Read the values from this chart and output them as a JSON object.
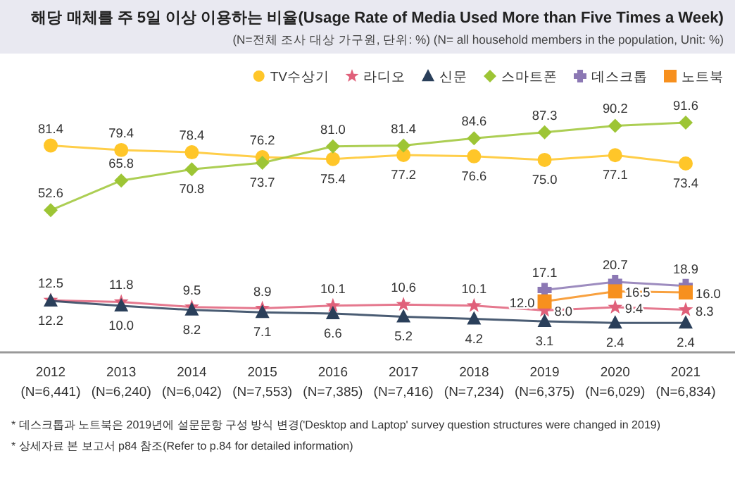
{
  "chart_data": {
    "type": "line",
    "title": "해당 매체를 주 5일 이상 이용하는 비율(Usage Rate of Media Used More than Five Times a Week)",
    "subtitle": "(N=전체 조사 대상 가구원, 단위: %) (N= all household members in the population, Unit: %)",
    "categories": [
      "2012\n(N=6,441)",
      "2013\n(N=6,240)",
      "2014\n(N=6,042)",
      "2015\n(N=7,553)",
      "2016\n(N=7,385)",
      "2017\n(N=7,416)",
      "2018\n(N=7,234)",
      "2019\n(N=6,375)",
      "2020\n(N=6,029)",
      "2021\n(N=6,834)"
    ],
    "series": [
      {
        "name": "TV수상기",
        "color": "#ffc629",
        "marker": "circle",
        "values": [
          81.4,
          79.4,
          78.4,
          76.2,
          75.4,
          77.2,
          76.6,
          75.0,
          77.1,
          73.4
        ],
        "value_labels": [
          "81.4",
          "79.4",
          "78.4",
          "76.2",
          "75.4",
          "77.2",
          "76.6",
          "75.0",
          "77.1",
          "73.4"
        ]
      },
      {
        "name": "라디오",
        "color": "#e0607a",
        "marker": "star",
        "values": [
          12.5,
          11.8,
          9.5,
          8.9,
          10.1,
          10.6,
          10.1,
          8.0,
          9.4,
          8.3
        ],
        "value_labels": [
          "12.5",
          "11.8",
          "9.5",
          "8.9",
          "10.1",
          "10.6",
          "10.1",
          "8.0",
          "9.4",
          "8.3"
        ]
      },
      {
        "name": "신문",
        "color": "#2a3f5a",
        "marker": "triangle",
        "values": [
          12.2,
          10.0,
          8.2,
          7.1,
          6.6,
          5.2,
          4.2,
          3.1,
          2.4,
          2.4
        ],
        "value_labels": [
          "12.2",
          "10.0",
          "8.2",
          "7.1",
          "6.6",
          "5.2",
          "4.2",
          "3.1",
          "2.4",
          "2.4"
        ]
      },
      {
        "name": "스마트폰",
        "color": "#9dc535",
        "marker": "diamond",
        "values": [
          52.6,
          65.8,
          70.8,
          73.7,
          81.0,
          81.4,
          84.6,
          87.3,
          90.2,
          91.6
        ],
        "value_labels": [
          "52.6",
          "65.8",
          "70.8",
          "73.7",
          "81.0",
          "81.4",
          "84.6",
          "87.3",
          "90.2",
          "91.6"
        ]
      },
      {
        "name": "데스크톱",
        "color": "#8c78b4",
        "marker": "cross",
        "values": [
          null,
          null,
          null,
          null,
          null,
          null,
          null,
          17.1,
          20.7,
          18.9
        ],
        "value_labels": [
          null,
          null,
          null,
          null,
          null,
          null,
          null,
          "17.1",
          "20.7",
          "18.9"
        ]
      },
      {
        "name": "노트북",
        "color": "#f7901e",
        "marker": "square",
        "values": [
          null,
          null,
          null,
          null,
          null,
          null,
          null,
          12.0,
          16.5,
          16.0
        ],
        "value_labels": [
          null,
          null,
          null,
          null,
          null,
          null,
          null,
          "12.0",
          "16.5",
          "16.0"
        ]
      }
    ],
    "legend": "top right",
    "grid": false,
    "annotations": [
      "* 데스크톱과 노트북은 2019년에 설문문항 구성 방식 변경('Desktop and Laptop' survey question structures were changed in 2019)",
      "* 상세자료 본 보고서 p84 참조(Refer to p.84 for detailed information)"
    ]
  }
}
